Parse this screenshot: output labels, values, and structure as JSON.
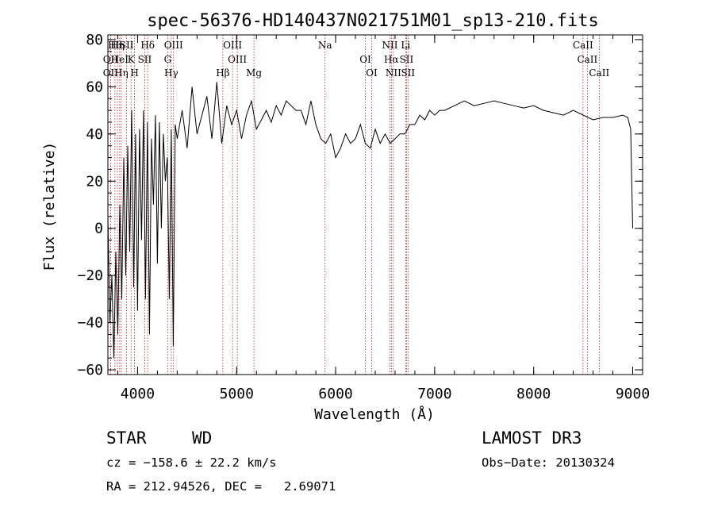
{
  "chart_data": {
    "type": "line",
    "title": "spec-56376-HD140437N021751M01_sp13-210.fits",
    "xlabel": "Wavelength (Å)",
    "ylabel": "Flux (relative)",
    "xlim": [
      3700,
      9100
    ],
    "ylim": [
      -62,
      82
    ],
    "x_ticks": [
      {
        "value": 4000,
        "label": "4000"
      },
      {
        "value": 5000,
        "label": "5000"
      },
      {
        "value": 6000,
        "label": "6000"
      },
      {
        "value": 7000,
        "label": "7000"
      },
      {
        "value": 8000,
        "label": "8000"
      },
      {
        "value": 9000,
        "label": "9000"
      }
    ],
    "y_ticks": [
      {
        "value": -60,
        "label": "−60"
      },
      {
        "value": -40,
        "label": "−40"
      },
      {
        "value": -20,
        "label": "−20"
      },
      {
        "value": 0,
        "label": "0"
      },
      {
        "value": 20,
        "label": "20"
      },
      {
        "value": 40,
        "label": "40"
      },
      {
        "value": 60,
        "label": "60"
      },
      {
        "value": 80,
        "label": "80"
      }
    ],
    "line_color": "#000000",
    "marker_line_color": "#b22222",
    "spectrum": {
      "x": [
        3700,
        3720,
        3740,
        3760,
        3780,
        3800,
        3820,
        3840,
        3860,
        3880,
        3900,
        3920,
        3940,
        3960,
        3980,
        4000,
        4020,
        4040,
        4060,
        4080,
        4100,
        4120,
        4140,
        4160,
        4180,
        4200,
        4220,
        4240,
        4260,
        4280,
        4300,
        4320,
        4340,
        4360,
        4380,
        4400,
        4450,
        4500,
        4550,
        4600,
        4650,
        4700,
        4750,
        4800,
        4850,
        4900,
        4950,
        5000,
        5050,
        5100,
        5150,
        5200,
        5250,
        5300,
        5350,
        5400,
        5450,
        5500,
        5550,
        5600,
        5650,
        5700,
        5750,
        5800,
        5850,
        5900,
        5950,
        6000,
        6050,
        6100,
        6150,
        6200,
        6250,
        6300,
        6350,
        6400,
        6450,
        6500,
        6550,
        6600,
        6650,
        6700,
        6750,
        6800,
        6850,
        6900,
        6950,
        7000,
        7050,
        7100,
        7200,
        7300,
        7400,
        7500,
        7600,
        7700,
        7800,
        7900,
        8000,
        8100,
        8200,
        8300,
        8400,
        8500,
        8600,
        8700,
        8800,
        8900,
        8950,
        8980,
        9000
      ],
      "y": [
        5,
        -40,
        -20,
        -55,
        -10,
        -45,
        10,
        -30,
        30,
        -20,
        35,
        -10,
        50,
        -25,
        40,
        -35,
        42,
        -5,
        50,
        -30,
        45,
        -45,
        38,
        10,
        48,
        -15,
        45,
        0,
        40,
        20,
        30,
        -30,
        42,
        -50,
        44,
        38,
        50,
        34,
        60,
        40,
        48,
        56,
        38,
        62,
        36,
        52,
        44,
        50,
        38,
        48,
        54,
        42,
        46,
        50,
        45,
        52,
        48,
        54,
        52,
        50,
        50,
        44,
        54,
        44,
        38,
        36,
        40,
        30,
        34,
        40,
        36,
        38,
        44,
        36,
        34,
        42,
        36,
        40,
        36,
        38,
        40,
        40,
        44,
        44,
        48,
        46,
        50,
        48,
        50,
        50,
        52,
        54,
        52,
        53,
        54,
        53,
        52,
        51,
        52,
        50,
        49,
        48,
        50,
        48,
        46,
        47,
        47,
        48,
        47,
        42,
        0
      ]
    },
    "line_markers": [
      {
        "wavelength": 3771,
        "label": "Hθ"
      },
      {
        "wavelength": 3727,
        "label": "OII"
      },
      {
        "wavelength": 3727,
        "label": "OII"
      },
      {
        "wavelength": 3797,
        "label": "Hη"
      },
      {
        "wavelength": 3819,
        "label": "HeI"
      },
      {
        "wavelength": 3835,
        "label": "Hη"
      },
      {
        "wavelength": 3889,
        "label": "SII"
      },
      {
        "wavelength": 3934,
        "label": "K"
      },
      {
        "wavelength": 3969,
        "label": "H"
      },
      {
        "wavelength": 4102,
        "label": "Hδ"
      },
      {
        "wavelength": 4072,
        "label": "SII"
      },
      {
        "wavelength": 4340,
        "label": "Hγ"
      },
      {
        "wavelength": 4363,
        "label": "OIII"
      },
      {
        "wavelength": 4304,
        "label": "G"
      },
      {
        "wavelength": 4861,
        "label": "Hβ"
      },
      {
        "wavelength": 4959,
        "label": "OIII"
      },
      {
        "wavelength": 5007,
        "label": "OIII"
      },
      {
        "wavelength": 5175,
        "label": "Mg"
      },
      {
        "wavelength": 5893,
        "label": "Na"
      },
      {
        "wavelength": 6300,
        "label": "OI"
      },
      {
        "wavelength": 6364,
        "label": "OI"
      },
      {
        "wavelength": 6548,
        "label": "NII"
      },
      {
        "wavelength": 6563,
        "label": "Hα"
      },
      {
        "wavelength": 6583,
        "label": "NII"
      },
      {
        "wavelength": 6707,
        "label": "Li"
      },
      {
        "wavelength": 6716,
        "label": "SII"
      },
      {
        "wavelength": 6731,
        "label": "SII"
      },
      {
        "wavelength": 8498,
        "label": "CaII"
      },
      {
        "wavelength": 8542,
        "label": "CaII"
      },
      {
        "wavelength": 8662,
        "label": "CaII"
      }
    ]
  },
  "footer": {
    "class_label": "STAR",
    "subclass": "WD",
    "survey": "LAMOST DR3",
    "cz": "cz = −158.6 ± 22.2 km/s",
    "obs_date": "Obs−Date: 20130324",
    "coords": "RA = 212.94526, DEC =   2.69071"
  }
}
